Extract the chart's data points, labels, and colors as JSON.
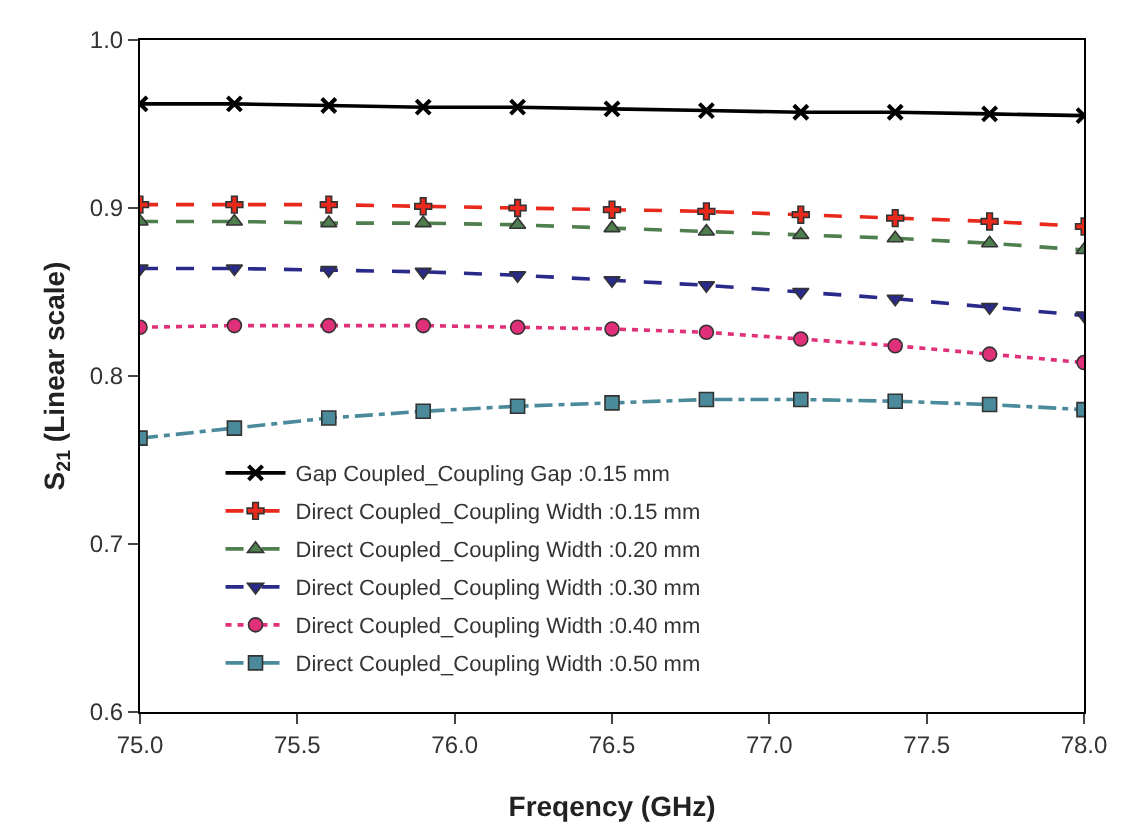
{
  "chart_data": {
    "type": "line",
    "xlabel": "Freqency (GHz)",
    "ylabel": "S$_{21}$ (Linear scale)",
    "x": [
      75.0,
      75.3,
      75.6,
      75.9,
      76.2,
      76.5,
      76.8,
      77.1,
      77.4,
      77.7,
      78.0
    ],
    "xlim": [
      75.0,
      78.0
    ],
    "xticks": [
      {
        "value": 75,
        "label": "75.0"
      },
      {
        "value": 75.5,
        "label": "75.5"
      },
      {
        "value": 76,
        "label": "76.0"
      },
      {
        "value": 76.5,
        "label": "76.5"
      },
      {
        "value": 77,
        "label": "77.0"
      },
      {
        "value": 77.5,
        "label": "77.5"
      },
      {
        "value": 78,
        "label": "78.0"
      }
    ],
    "ylim": [
      0.6,
      1.0
    ],
    "yticks": [
      {
        "value": 0.6,
        "label": "0.6"
      },
      {
        "value": 0.7,
        "label": "0.7"
      },
      {
        "value": 0.8,
        "label": "0.8"
      },
      {
        "value": 0.9,
        "label": "0.9"
      },
      {
        "value": 1.0,
        "label": "1.0"
      }
    ],
    "grid": false,
    "legend": "bottom",
    "series": [
      {
        "name": "Gap Coupled_Coupling Gap :0.15 mm",
        "color": "#000000",
        "marker": "cross",
        "line_style": "solid",
        "values": [
          0.962,
          0.962,
          0.961,
          0.96,
          0.96,
          0.959,
          0.958,
          0.957,
          0.957,
          0.956,
          0.955
        ]
      },
      {
        "name": "Direct Coupled_Coupling Width :0.15 mm",
        "color": "#e8291c",
        "marker": "cross",
        "line_style": "dashed",
        "values": [
          0.902,
          0.902,
          0.902,
          0.901,
          0.9,
          0.899,
          0.898,
          0.896,
          0.894,
          0.892,
          0.889
        ]
      },
      {
        "name": "Direct Coupled_Coupling Width :0.20 mm",
        "color": "#4f7f4f",
        "marker": "triangle",
        "line_style": "dashed",
        "values": [
          0.892,
          0.892,
          0.891,
          0.891,
          0.89,
          0.888,
          0.886,
          0.884,
          0.882,
          0.879,
          0.875
        ]
      },
      {
        "name": "Direct Coupled_Coupling Width :0.30 mm",
        "color": "#2a2a8a",
        "marker": "triangle",
        "line_style": "dashed",
        "values": [
          0.864,
          0.864,
          0.863,
          0.862,
          0.86,
          0.857,
          0.854,
          0.85,
          0.846,
          0.841,
          0.836
        ]
      },
      {
        "name": "Direct Coupled_Coupling Width :0.40 mm",
        "color": "#e0307a",
        "marker": "circle",
        "line_style": "dotted",
        "values": [
          0.829,
          0.83,
          0.83,
          0.83,
          0.829,
          0.828,
          0.826,
          0.822,
          0.818,
          0.813,
          0.808
        ]
      },
      {
        "name": "Direct Coupled_Coupling Width :0.50 mm",
        "color": "#4a8a9a",
        "marker": "square",
        "line_style": "dashdot",
        "values": [
          0.763,
          0.769,
          0.775,
          0.779,
          0.782,
          0.784,
          0.786,
          0.786,
          0.785,
          0.783,
          0.78
        ]
      }
    ]
  }
}
